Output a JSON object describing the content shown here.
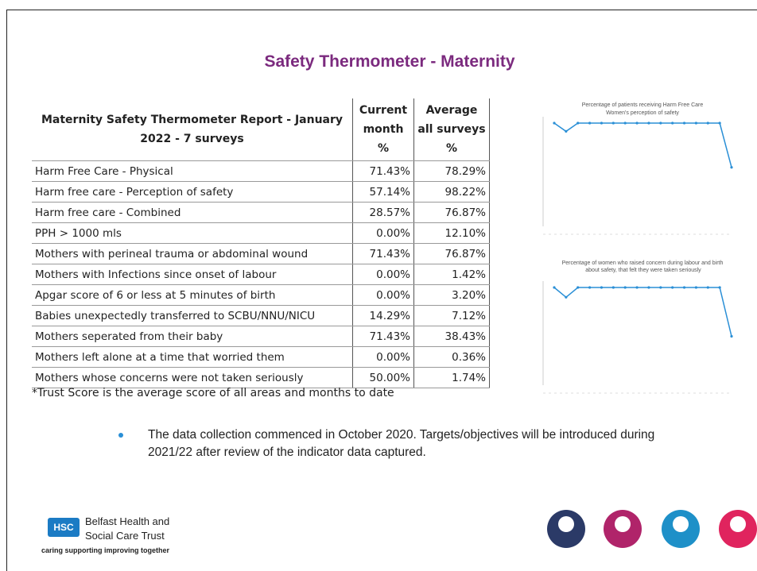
{
  "title": "Safety Thermometer - Maternity",
  "table": {
    "header": [
      "Maternity Safety Thermometer Report - January 2022 - 7 surveys",
      "Current month %",
      "Average all surveys %"
    ],
    "rows": [
      [
        "Harm Free Care - Physical",
        "71.43%",
        "78.29%"
      ],
      [
        "Harm free care - Perception of safety",
        "57.14%",
        "98.22%"
      ],
      [
        "Harm free care - Combined",
        "28.57%",
        "76.87%"
      ],
      [
        "PPH > 1000 mls",
        "0.00%",
        "12.10%"
      ],
      [
        "Mothers with perineal trauma or abdominal wound",
        "71.43%",
        "76.87%"
      ],
      [
        "Mothers with Infections since onset of labour",
        "0.00%",
        "1.42%"
      ],
      [
        "Apgar score of 6 or less at 5 minutes of birth",
        "0.00%",
        "3.20%"
      ],
      [
        "Babies unexpectedly transferred to SCBU/NNU/NICU",
        "14.29%",
        "7.12%"
      ],
      [
        "Mothers seperated from their baby",
        "71.43%",
        "38.43%"
      ],
      [
        "Mothers left alone at a time that worried them",
        "0.00%",
        "0.36%"
      ],
      [
        "Mothers whose concerns were not taken seriously",
        "50.00%",
        "1.74%"
      ]
    ]
  },
  "footnote": "*Trust Score is the average score of all areas and months to date",
  "bullet": "The data collection commenced in October 2020. Targets/objectives will be introduced during 2021/22 after review of the indicator data captured.",
  "logo": {
    "badge": "HSC",
    "name": "Belfast Health and Social Care Trust",
    "tagline": "caring supporting improving together"
  },
  "chart_data": [
    {
      "type": "line",
      "title": "Percentage of patients receiving Harm Free Care",
      "subtitle": "Women's perception of safety",
      "color": "#2a8fd6",
      "ylim": [
        0,
        100
      ],
      "values": [
        100,
        92,
        100,
        100,
        100,
        100,
        100,
        100,
        100,
        100,
        100,
        100,
        100,
        100,
        100,
        57.14
      ]
    },
    {
      "type": "line",
      "title": "Percentage of women who raised concern during labour and birth about safety, that felt they were taken seriously",
      "color": "#2a8fd6",
      "ylim": [
        0,
        100
      ],
      "values": [
        100,
        90,
        100,
        100,
        100,
        100,
        100,
        100,
        100,
        100,
        100,
        100,
        100,
        100,
        100,
        50
      ]
    }
  ]
}
